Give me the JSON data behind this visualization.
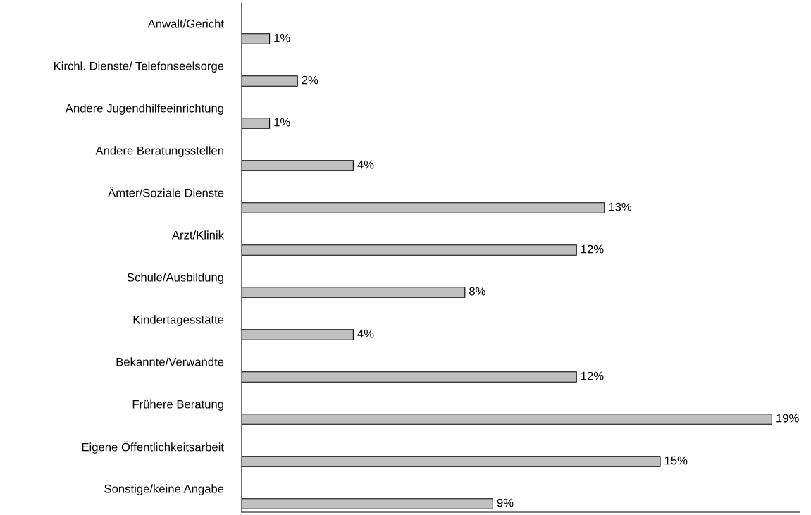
{
  "chart_data": {
    "type": "bar",
    "orientation": "horizontal",
    "categories": [
      "Anwalt/Gericht",
      "Kirchl. Dienste/ Telefonseelsorge",
      "Andere Jugendhilfeeinrichtung",
      "Andere Beratungsstellen",
      "Ämter/Soziale Dienste",
      "Arzt/Klinik",
      "Schule/Ausbildung",
      "Kindertagesstätte",
      "Bekannte/Verwandte",
      "Frühere Beratung",
      "Eigene Öffentlichkeitsarbeit",
      "Sonstige/keine Angabe"
    ],
    "values": [
      1,
      2,
      1,
      4,
      13,
      12,
      8,
      4,
      12,
      19,
      15,
      9
    ],
    "color": "#c0c0c0",
    "value_labels": [
      "1%",
      "2%",
      "1%",
      "4%",
      "13%",
      "12%",
      "8%",
      "4%",
      "12%",
      "19%",
      "15%",
      "9%"
    ],
    "xlim": [
      0,
      20
    ],
    "grid": false,
    "legend": false
  }
}
